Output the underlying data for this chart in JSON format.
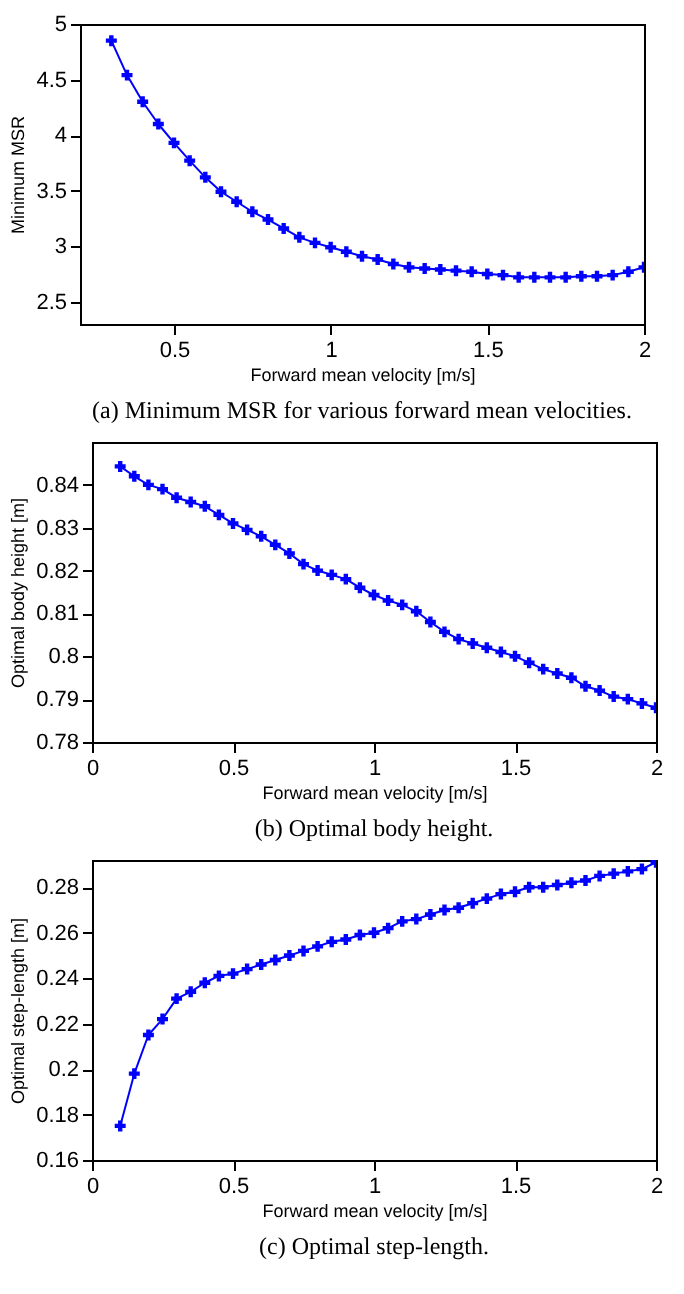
{
  "chart_data": [
    {
      "type": "line",
      "xlabel": "Forward mean velocity [m/s]",
      "ylabel": "Minimum MSR",
      "annotations": [
        "(a) Minimum MSR for various forward mean velocities."
      ],
      "marker": "cross",
      "grid": false,
      "x": [
        0.3,
        0.35,
        0.4,
        0.45,
        0.5,
        0.55,
        0.6,
        0.65,
        0.7,
        0.75,
        0.8,
        0.85,
        0.9,
        0.95,
        1.0,
        1.05,
        1.1,
        1.15,
        1.2,
        1.25,
        1.3,
        1.35,
        1.4,
        1.45,
        1.5,
        1.55,
        1.6,
        1.65,
        1.7,
        1.75,
        1.8,
        1.85,
        1.9,
        1.95,
        2.0
      ],
      "series": [
        {
          "color": "#0000ff",
          "values": [
            4.85,
            4.54,
            4.3,
            4.1,
            3.93,
            3.77,
            3.62,
            3.49,
            3.4,
            3.31,
            3.24,
            3.16,
            3.08,
            3.03,
            2.99,
            2.95,
            2.91,
            2.88,
            2.84,
            2.81,
            2.8,
            2.79,
            2.78,
            2.77,
            2.75,
            2.74,
            2.72,
            2.72,
            2.72,
            2.72,
            2.73,
            2.73,
            2.74,
            2.77,
            2.81
          ]
        }
      ],
      "xlim": [
        0.2,
        2
      ],
      "xticks": [
        0.5,
        1,
        1.5,
        2
      ],
      "ylim": [
        2.3,
        5
      ],
      "yticks": [
        2.5,
        3,
        3.5,
        4,
        4.5,
        5
      ]
    },
    {
      "type": "line",
      "xlabel": "Forward mean velocity [m/s]",
      "ylabel": "Optimal body height [m]",
      "annotations": [
        "(b) Optimal body height."
      ],
      "marker": "cross",
      "grid": false,
      "x": [
        0.1,
        0.15,
        0.2,
        0.25,
        0.3,
        0.35,
        0.4,
        0.45,
        0.5,
        0.55,
        0.6,
        0.65,
        0.7,
        0.75,
        0.8,
        0.85,
        0.9,
        0.95,
        1.0,
        1.05,
        1.1,
        1.15,
        1.2,
        1.25,
        1.3,
        1.35,
        1.4,
        1.45,
        1.5,
        1.55,
        1.6,
        1.65,
        1.7,
        1.75,
        1.8,
        1.85,
        1.9,
        1.95,
        2.0
      ],
      "series": [
        {
          "color": "#0000ff",
          "values": [
            0.8443,
            0.842,
            0.84,
            0.839,
            0.837,
            0.836,
            0.835,
            0.833,
            0.831,
            0.8295,
            0.828,
            0.826,
            0.824,
            0.8215,
            0.82,
            0.819,
            0.818,
            0.816,
            0.8143,
            0.813,
            0.812,
            0.8105,
            0.808,
            0.8057,
            0.804,
            0.803,
            0.802,
            0.801,
            0.8,
            0.7985,
            0.797,
            0.796,
            0.795,
            0.793,
            0.792,
            0.7906,
            0.79,
            0.789,
            0.788
          ]
        }
      ],
      "xlim": [
        0,
        2
      ],
      "xticks": [
        0,
        0.5,
        1,
        1.5,
        2
      ],
      "ylim": [
        0.78,
        0.85
      ],
      "yticks": [
        0.78,
        0.79,
        0.8,
        0.81,
        0.82,
        0.83,
        0.84
      ]
    },
    {
      "type": "line",
      "xlabel": "Forward mean velocity [m/s]",
      "ylabel": "Optimal step-length [m]",
      "annotations": [
        "(c) Optimal step-length."
      ],
      "marker": "cross",
      "grid": false,
      "x": [
        0.1,
        0.15,
        0.2,
        0.25,
        0.3,
        0.35,
        0.4,
        0.45,
        0.5,
        0.55,
        0.6,
        0.65,
        0.7,
        0.75,
        0.8,
        0.85,
        0.9,
        0.95,
        1.0,
        1.05,
        1.1,
        1.15,
        1.2,
        1.25,
        1.3,
        1.35,
        1.4,
        1.45,
        1.5,
        1.55,
        1.6,
        1.65,
        1.7,
        1.75,
        1.8,
        1.85,
        1.9,
        1.95,
        2.0
      ],
      "series": [
        {
          "color": "#0000ff",
          "values": [
            0.175,
            0.198,
            0.215,
            0.222,
            0.231,
            0.234,
            0.238,
            0.241,
            0.242,
            0.244,
            0.246,
            0.248,
            0.25,
            0.252,
            0.254,
            0.256,
            0.257,
            0.259,
            0.26,
            0.262,
            0.265,
            0.266,
            0.268,
            0.27,
            0.271,
            0.273,
            0.275,
            0.277,
            0.278,
            0.28,
            0.28,
            0.281,
            0.282,
            0.283,
            0.285,
            0.286,
            0.287,
            0.288,
            0.291
          ]
        }
      ],
      "xlim": [
        0,
        2
      ],
      "xticks": [
        0,
        0.5,
        1,
        1.5,
        2
      ],
      "ylim": [
        0.16,
        0.292
      ],
      "yticks": [
        0.16,
        0.18,
        0.2,
        0.22,
        0.24,
        0.26,
        0.28
      ]
    }
  ]
}
